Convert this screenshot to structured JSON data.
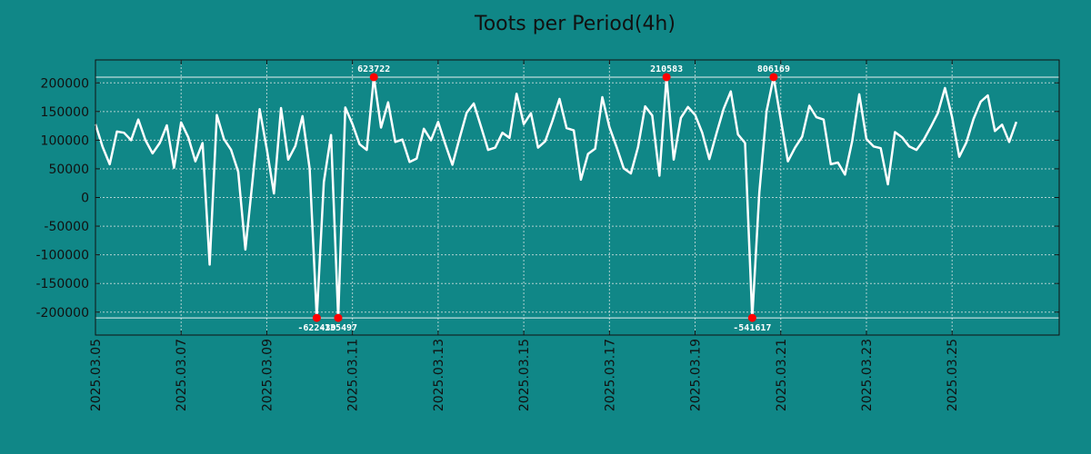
{
  "chart_data": {
    "type": "line",
    "title": "Toots per Period(4h)",
    "xlabel": "",
    "ylabel": "",
    "ylim": [
      -240000,
      240000
    ],
    "xlim": [
      0,
      22.5
    ],
    "x_unit": "days since 2025.03.05",
    "grid": true,
    "line_color": "#ffffff",
    "marker_color": "#ff0000",
    "yticks": [
      200000,
      150000,
      100000,
      50000,
      0,
      -50000,
      -100000,
      -150000,
      -200000
    ],
    "ytick_labels": [
      "200000",
      "150000",
      "100000",
      "50000",
      "0",
      "-50000",
      "-100000",
      "-150000",
      "-200000"
    ],
    "xticks": [
      0,
      2,
      4,
      6,
      8,
      10,
      12,
      14,
      16,
      18,
      20
    ],
    "xtick_labels": [
      "2025.03.05",
      "2025.03.07",
      "2025.03.09",
      "2025.03.11",
      "2025.03.13",
      "2025.03.15",
      "2025.03.17",
      "2025.03.19",
      "2025.03.21",
      "2025.03.23",
      "2025.03.25"
    ],
    "clip_lines": [
      210000,
      -210000
    ],
    "series": [
      {
        "name": "Toots",
        "x": [
          0.0,
          0.167,
          0.333,
          0.5,
          0.667,
          0.833,
          1.0,
          1.167,
          1.333,
          1.5,
          1.667,
          1.833,
          2.0,
          2.167,
          2.333,
          2.5,
          2.667,
          2.833,
          3.0,
          3.167,
          3.333,
          3.5,
          3.667,
          3.833,
          4.0,
          4.167,
          4.333,
          4.5,
          4.667,
          4.833,
          5.0,
          5.167,
          5.333,
          5.5,
          5.667,
          5.833,
          6.0,
          6.167,
          6.333,
          6.5,
          6.667,
          6.833,
          7.0,
          7.167,
          7.333,
          7.5,
          7.667,
          7.833,
          8.0,
          8.167,
          8.333,
          8.5,
          8.667,
          8.833,
          9.0,
          9.167,
          9.333,
          9.5,
          9.667,
          9.833,
          10.0,
          10.167,
          10.333,
          10.5,
          10.667,
          10.833,
          11.0,
          11.167,
          11.333,
          11.5,
          11.667,
          11.833,
          12.0,
          12.167,
          12.333,
          12.5,
          12.667,
          12.833,
          13.0,
          13.167,
          13.333,
          13.5,
          13.667,
          13.833,
          14.0,
          14.167,
          14.333,
          14.5,
          14.667,
          14.833,
          15.0,
          15.167,
          15.333,
          15.5,
          15.667,
          15.833,
          16.0,
          16.167,
          16.333,
          16.5,
          16.667,
          16.833,
          17.0,
          17.167,
          17.333,
          17.5,
          17.667,
          17.833,
          18.0,
          18.167,
          18.333,
          18.5,
          18.667,
          18.833,
          19.0,
          19.167,
          19.333,
          19.5,
          19.667,
          19.833,
          20.0,
          20.167,
          20.333,
          20.5,
          20.667,
          20.833,
          21.0,
          21.167,
          21.333,
          21.5
        ],
        "y": [
          128000,
          88000,
          58000,
          115000,
          113000,
          100000,
          136000,
          100000,
          77000,
          95000,
          126000,
          52000,
          131000,
          105000,
          63000,
          95000,
          -117000,
          144000,
          102000,
          83000,
          45000,
          -91000,
          30000,
          154000,
          85000,
          7000,
          156000,
          66000,
          90000,
          142000,
          50000,
          -210000,
          27000,
          109000,
          -210000,
          157000,
          128000,
          93000,
          83000,
          210000,
          122000,
          166000,
          97000,
          101000,
          62000,
          68000,
          120000,
          100000,
          132000,
          93000,
          57000,
          103000,
          148000,
          164000,
          124000,
          83000,
          87000,
          113000,
          104000,
          181000,
          128000,
          147000,
          87000,
          98000,
          133000,
          172000,
          121000,
          117000,
          31000,
          76000,
          85000,
          175000,
          123000,
          88000,
          51000,
          42000,
          88000,
          159000,
          143000,
          38000,
          210000,
          66000,
          139000,
          158000,
          144000,
          113000,
          67000,
          112000,
          155000,
          185000,
          110000,
          95000,
          -210000,
          9000,
          150000,
          210000,
          136000,
          63000,
          87000,
          106000,
          160000,
          140000,
          136000,
          58000,
          61000,
          40000,
          98000,
          180000,
          102000,
          89000,
          86000,
          23000,
          114000,
          105000,
          89000,
          83000,
          100000,
          123000,
          147000,
          191000,
          140000,
          71000,
          96000,
          137000,
          167000,
          178000,
          116000,
          127000,
          97000,
          132000
        ]
      }
    ],
    "annotations": [
      {
        "x": 6.5,
        "y": 210000,
        "label": "623722",
        "position": "above"
      },
      {
        "x": 13.333,
        "y": 210000,
        "label": "210583",
        "position": "above"
      },
      {
        "x": 15.833,
        "y": 210000,
        "label": "806169",
        "position": "above"
      },
      {
        "x": 5.167,
        "y": -210000,
        "label": "-622430",
        "position": "below"
      },
      {
        "x": 5.667,
        "y": -210000,
        "label": "-135497",
        "position": "below"
      },
      {
        "x": 15.333,
        "y": -210000,
        "label": "-541617",
        "position": "below"
      }
    ]
  }
}
